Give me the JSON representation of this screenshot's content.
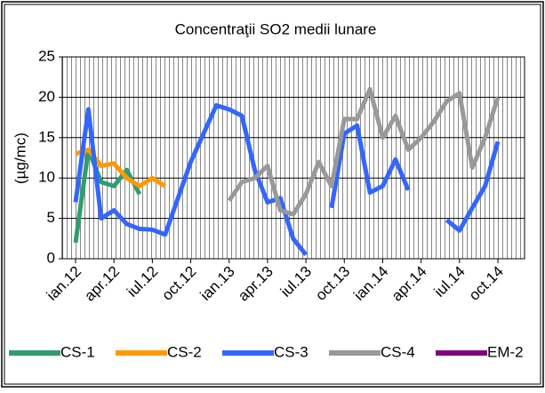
{
  "chart_data": {
    "type": "line",
    "title": "Concentraţii SO2  medii lunare",
    "y_label": "(µg/mc)",
    "categories": [
      "ian.12",
      null,
      null,
      "apr.12",
      null,
      null,
      "iul.12",
      null,
      null,
      "oct.12",
      null,
      null,
      "ian.13",
      null,
      null,
      "apr.13",
      null,
      null,
      "iul.13",
      null,
      null,
      "oct.13",
      null,
      null,
      "ian.14",
      null,
      null,
      "apr.14",
      null,
      null,
      "iul.14",
      null,
      null,
      "oct.14"
    ],
    "series": [
      {
        "name": "CS-1",
        "color": "#2e9e6e",
        "values": [
          2,
          13.5,
          9.5,
          9,
          11,
          8,
          null,
          null,
          null,
          null,
          null,
          null,
          null,
          null,
          null,
          null,
          null,
          null,
          null,
          null,
          null,
          null,
          null,
          null,
          null,
          null,
          null,
          null,
          null,
          null,
          null,
          null,
          null,
          null
        ]
      },
      {
        "name": "CS-2",
        "color": "#ff9900",
        "values": [
          13,
          13.5,
          11.5,
          11.8,
          10,
          9,
          10,
          9,
          null,
          null,
          null,
          null,
          null,
          null,
          null,
          null,
          null,
          null,
          null,
          null,
          null,
          null,
          null,
          null,
          null,
          null,
          null,
          null,
          null,
          null,
          null,
          null,
          null,
          null
        ]
      },
      {
        "name": "CS-3",
        "color": "#3366ff",
        "values": [
          7,
          18.5,
          5,
          6,
          4.3,
          3.7,
          3.6,
          3,
          7.5,
          12,
          15.5,
          19,
          18.5,
          17.7,
          11,
          7,
          7.5,
          2.5,
          0.5,
          null,
          6.3,
          15.5,
          16.5,
          8.2,
          9,
          12.3,
          8.5,
          null,
          null,
          4.8,
          3.5,
          6.3,
          9,
          14.5
        ]
      },
      {
        "name": "CS-4",
        "color": "#999999",
        "values": [
          null,
          null,
          null,
          null,
          null,
          null,
          null,
          null,
          null,
          null,
          null,
          null,
          7.2,
          9.5,
          10,
          11.5,
          6,
          5.5,
          8,
          12,
          9,
          17.3,
          17.3,
          21,
          15,
          17.7,
          13.5,
          15,
          17,
          19.5,
          20.5,
          11.3,
          15,
          20
        ]
      },
      {
        "name": "EM-2",
        "color": "#800080",
        "values": [
          null,
          null,
          null,
          null,
          null,
          null,
          null,
          null,
          null,
          null,
          null,
          null,
          null,
          null,
          null,
          null,
          null,
          null,
          null,
          null,
          null,
          null,
          null,
          null,
          null,
          null,
          null,
          null,
          null,
          null,
          null,
          null,
          null,
          null
        ]
      }
    ],
    "ylim": [
      0,
      25
    ],
    "yticks": [
      0,
      5,
      10,
      15,
      20,
      25
    ],
    "grid": true,
    "legend": "bottom"
  }
}
